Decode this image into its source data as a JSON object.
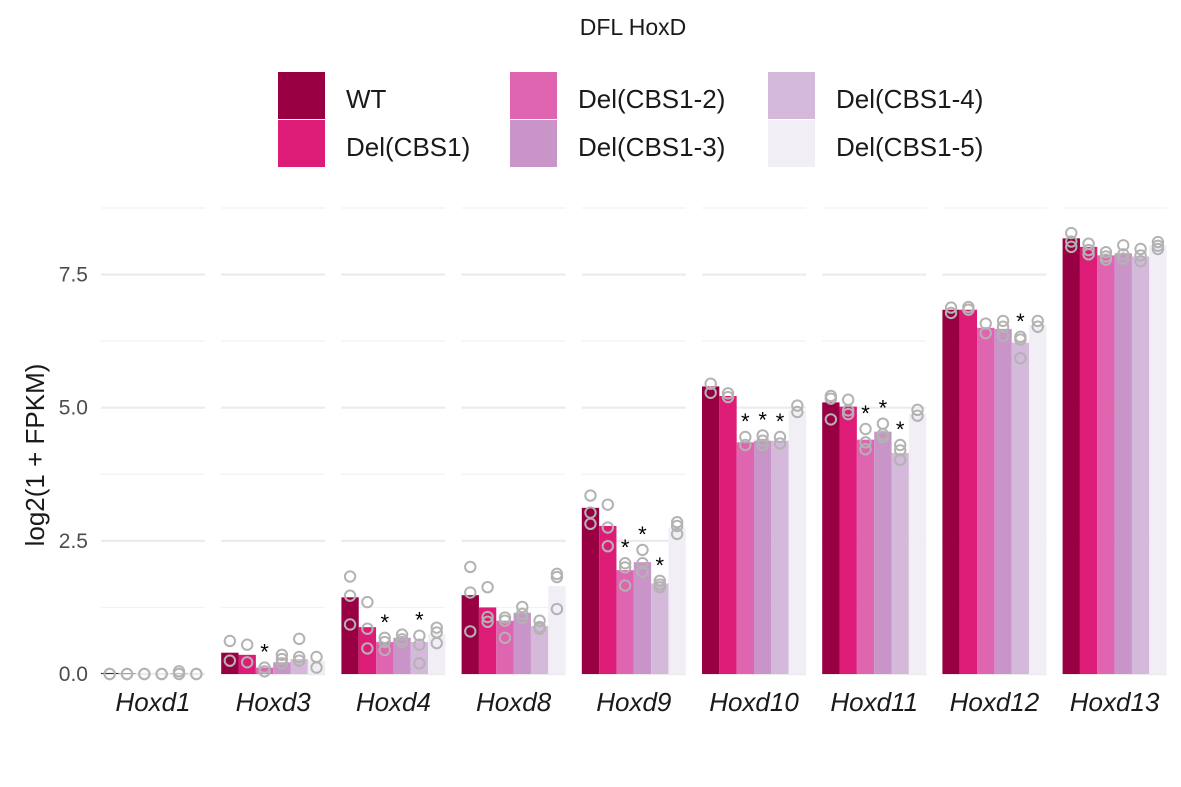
{
  "chart_data": {
    "type": "bar",
    "title": "DFL HoxD",
    "xlabel": "",
    "ylabel": "log2(1 + FPKM)",
    "ylim": [
      0,
      8.9
    ],
    "yticks": [
      0.0,
      2.5,
      5.0,
      7.5
    ],
    "ytick_labels": [
      "0.0",
      "2.5",
      "5.0",
      "7.5"
    ],
    "grid": true,
    "legend_position": "top",
    "categories": [
      "Hoxd1",
      "Hoxd3",
      "Hoxd4",
      "Hoxd8",
      "Hoxd9",
      "Hoxd10",
      "Hoxd11",
      "Hoxd12",
      "Hoxd13"
    ],
    "significance_marker": "*",
    "series": [
      {
        "name": "WT",
        "color": "#990044",
        "values": [
          0.02,
          0.4,
          1.44,
          1.48,
          3.12,
          5.4,
          5.1,
          6.84,
          8.18
        ],
        "replicates": [
          [
            0.0,
            0.0
          ],
          [
            0.62,
            0.25
          ],
          [
            1.83,
            1.47,
            0.93
          ],
          [
            2.01,
            1.53,
            0.8
          ],
          [
            3.35,
            3.03,
            2.82
          ],
          [
            5.45,
            5.28
          ],
          [
            5.22,
            5.17,
            4.78
          ],
          [
            6.88,
            6.78
          ],
          [
            8.28,
            8.12,
            8.02
          ]
        ],
        "significant": [
          false,
          false,
          false,
          false,
          false,
          false,
          false,
          false,
          false
        ]
      },
      {
        "name": "Del(CBS1)",
        "color": "#DD1C77",
        "values": [
          0.01,
          0.36,
          0.88,
          1.25,
          2.78,
          5.22,
          5.02,
          6.84,
          8.02
        ],
        "replicates": [
          [
            0.0,
            0.0
          ],
          [
            0.55,
            0.22
          ],
          [
            1.35,
            0.85,
            0.48
          ],
          [
            1.63,
            1.07,
            0.98
          ],
          [
            3.18,
            2.75,
            2.4
          ],
          [
            5.27,
            5.2
          ],
          [
            5.15,
            4.95,
            4.88
          ],
          [
            6.89,
            6.84
          ],
          [
            8.08,
            7.96,
            7.88
          ]
        ],
        "significant": [
          false,
          false,
          false,
          false,
          false,
          false,
          false,
          false,
          false
        ]
      },
      {
        "name": "Del(CBS1-2)",
        "color": "#DF65B0",
        "values": [
          0.0,
          0.12,
          0.6,
          1.0,
          1.95,
          4.35,
          4.4,
          6.5,
          7.86
        ],
        "replicates": [
          [
            0.0,
            0.0
          ],
          [
            0.12,
            0.05
          ],
          [
            0.68,
            0.6,
            0.45
          ],
          [
            1.06,
            1.0,
            0.68
          ],
          [
            2.08,
            2.0,
            1.66
          ],
          [
            4.45,
            4.3
          ],
          [
            4.6,
            4.35,
            4.22
          ],
          [
            6.58,
            6.4
          ],
          [
            7.92,
            7.84,
            7.78
          ]
        ],
        "significant": [
          false,
          true,
          true,
          false,
          true,
          true,
          true,
          false,
          false
        ]
      },
      {
        "name": "Del(CBS1-3)",
        "color": "#C994C7",
        "values": [
          0.0,
          0.22,
          0.68,
          1.15,
          2.1,
          4.38,
          4.55,
          6.48,
          7.9
        ],
        "replicates": [
          [
            0.0,
            0.0
          ],
          [
            0.36,
            0.28,
            0.2
          ],
          [
            0.74,
            0.65,
            0.6
          ],
          [
            1.26,
            1.13,
            1.05
          ],
          [
            2.33,
            2.08,
            1.92
          ],
          [
            4.48,
            4.38,
            4.3
          ],
          [
            4.7,
            4.5,
            4.45
          ],
          [
            6.63,
            6.52,
            6.35
          ],
          [
            8.05,
            7.88,
            7.8
          ]
        ],
        "significant": [
          false,
          false,
          false,
          false,
          true,
          true,
          true,
          false,
          false
        ]
      },
      {
        "name": "Del(CBS1-4)",
        "color": "#D4B9DA",
        "values": [
          0.02,
          0.28,
          0.6,
          0.9,
          1.7,
          4.38,
          4.15,
          6.22,
          7.84
        ],
        "replicates": [
          [
            0.05,
            0.0
          ],
          [
            0.66,
            0.32,
            0.25
          ],
          [
            0.72,
            0.55,
            0.2
          ],
          [
            1.0,
            0.88,
            0.85
          ],
          [
            1.75,
            1.68,
            1.63
          ],
          [
            4.45,
            4.33
          ],
          [
            4.3,
            4.2,
            4.02
          ],
          [
            6.33,
            6.28,
            5.93
          ],
          [
            7.98,
            7.86,
            7.75
          ]
        ],
        "significant": [
          false,
          false,
          true,
          false,
          true,
          true,
          true,
          true,
          false
        ]
      },
      {
        "name": "Del(CBS1-5)",
        "color": "#F1EEF6",
        "values": [
          0.0,
          0.25,
          0.75,
          1.65,
          2.75,
          4.95,
          4.88,
          6.55,
          8.05
        ],
        "replicates": [
          [
            0.0,
            0.0
          ],
          [
            0.32,
            0.12
          ],
          [
            0.87,
            0.78,
            0.58
          ],
          [
            1.88,
            1.82,
            1.22
          ],
          [
            2.85,
            2.78,
            2.63
          ],
          [
            5.04,
            4.92
          ],
          [
            4.96,
            4.85
          ],
          [
            6.63,
            6.52
          ],
          [
            8.11,
            8.04,
            7.98
          ]
        ],
        "significant": [
          false,
          false,
          false,
          false,
          false,
          false,
          false,
          false,
          false
        ]
      }
    ]
  }
}
